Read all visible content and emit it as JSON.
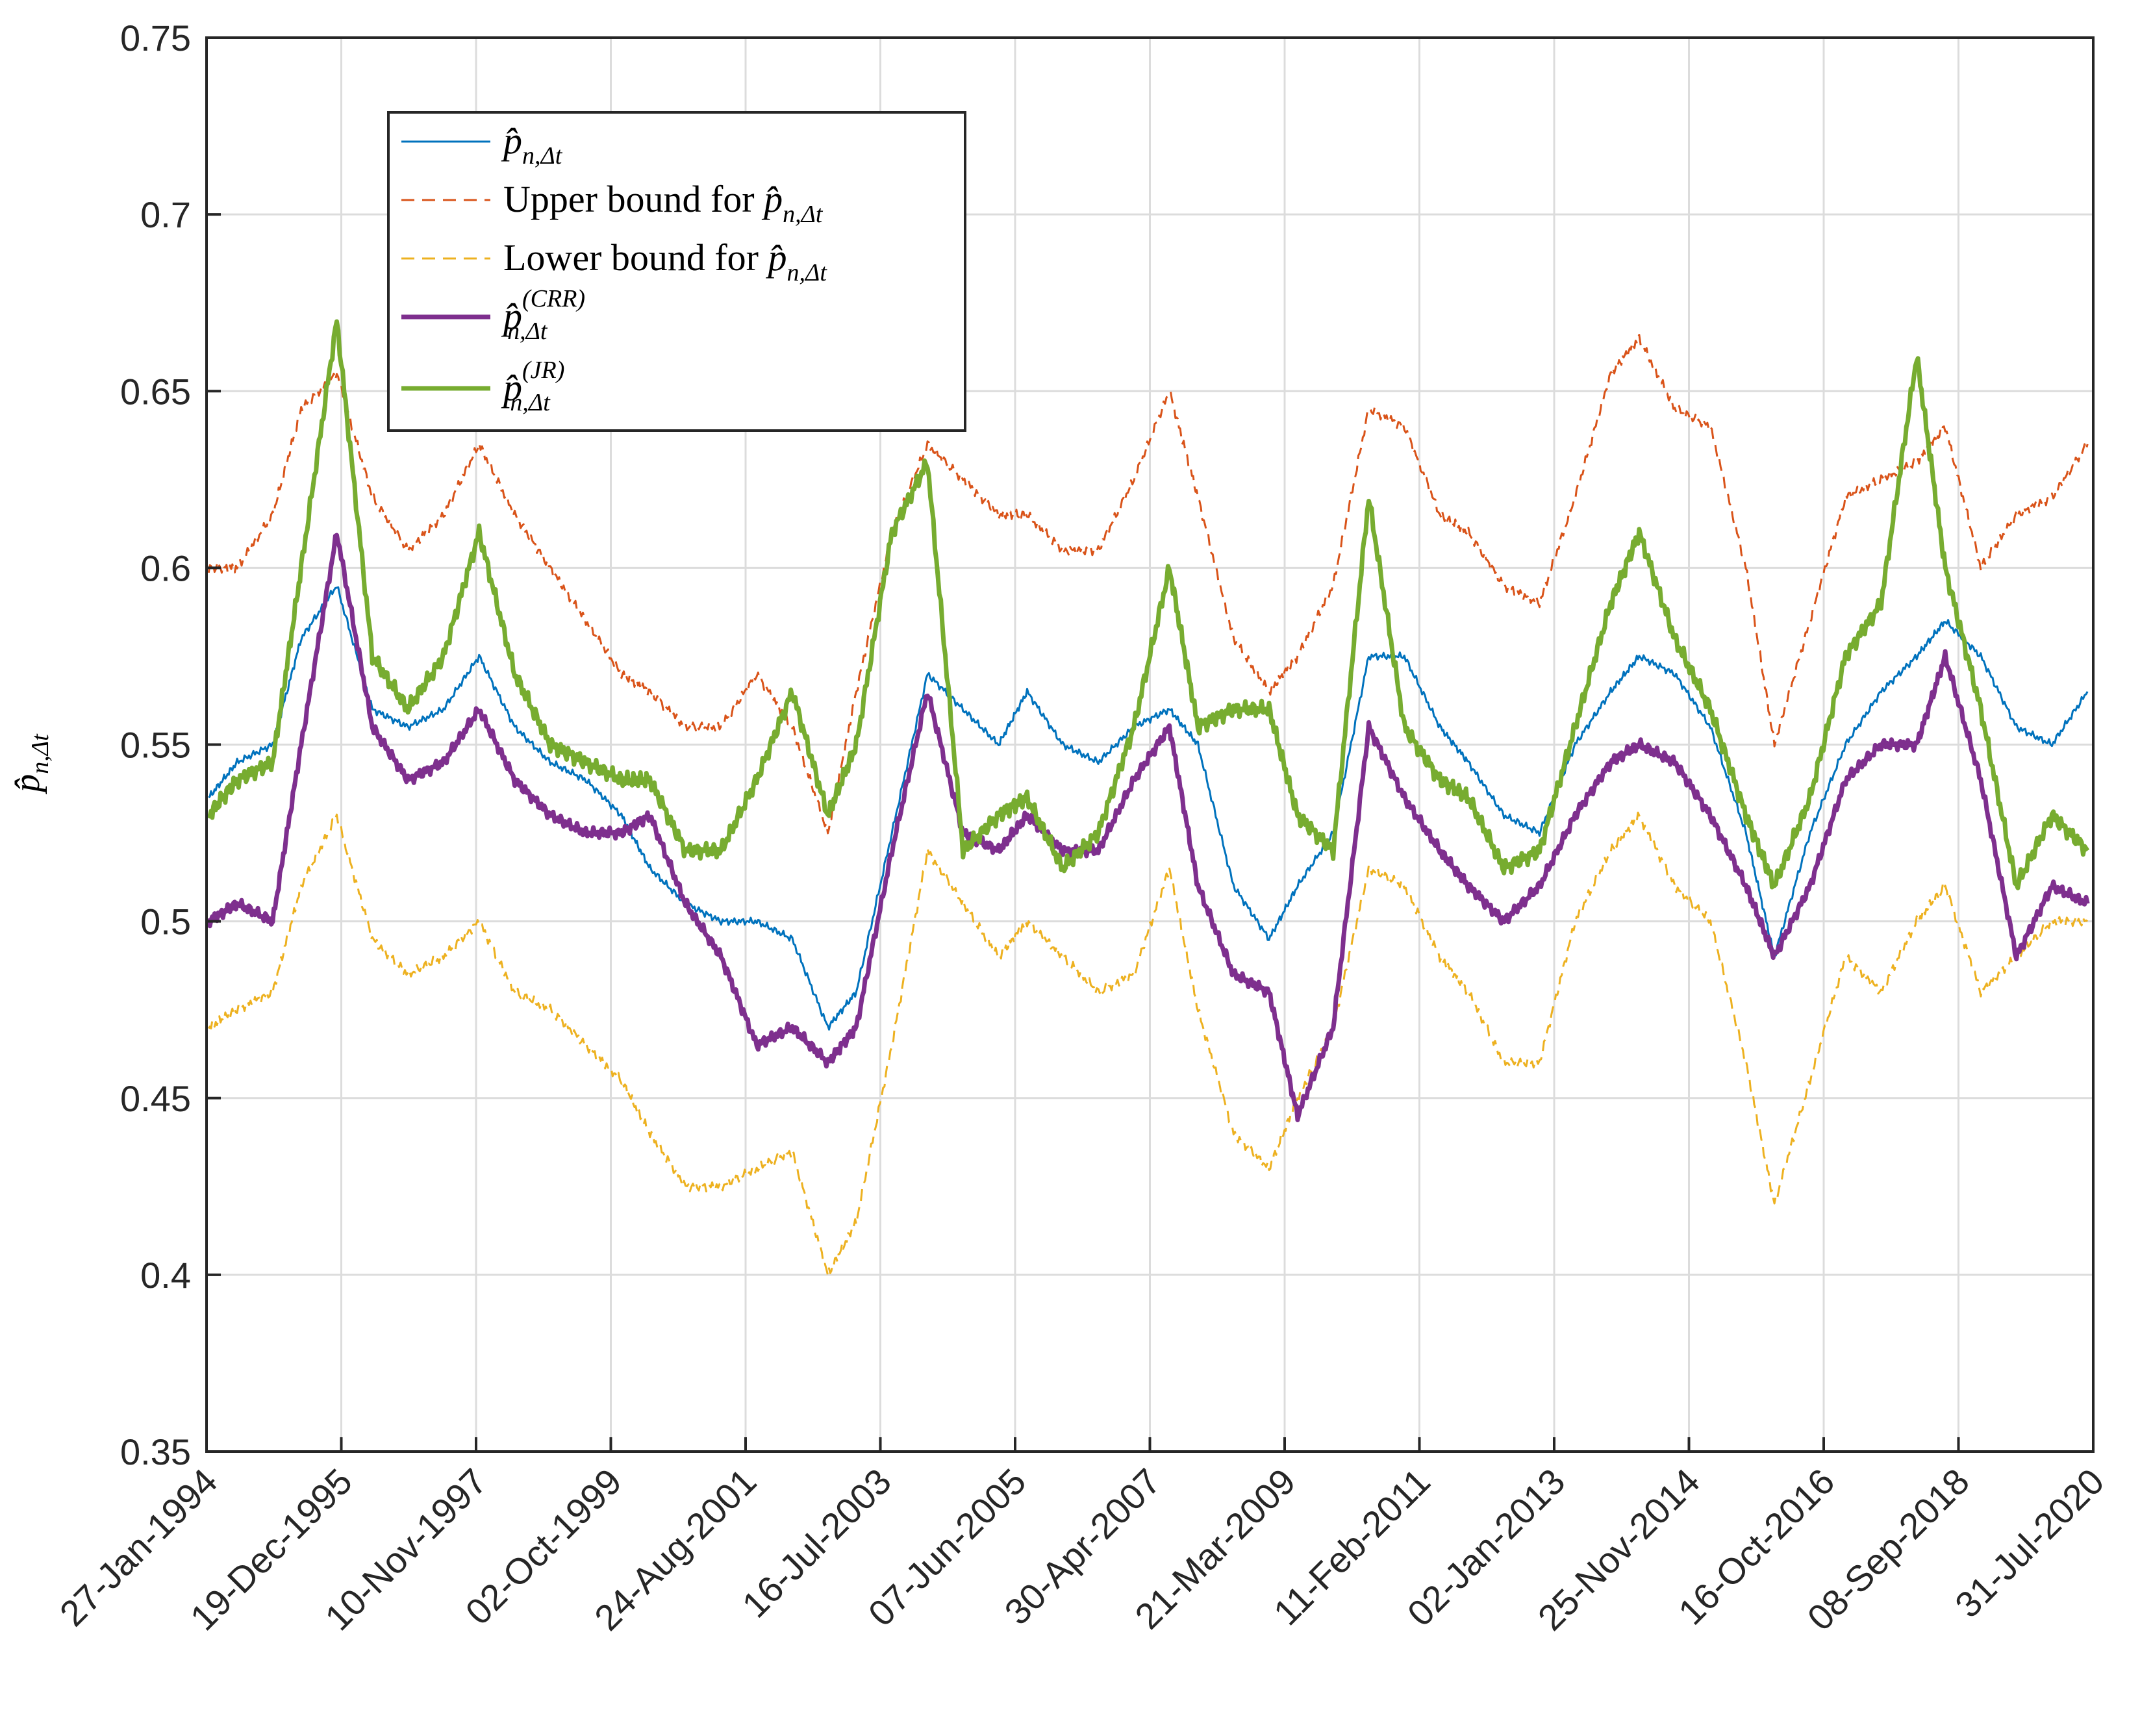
{
  "chart_data": {
    "type": "line",
    "title": "",
    "xlabel": "",
    "ylabel": "p̂",
    "ylabel_subscript": "n,Δt",
    "ylim": [
      0.35,
      0.75
    ],
    "y_ticks": [
      0.35,
      0.4,
      0.45,
      0.5,
      0.55,
      0.6,
      0.65,
      0.7,
      0.75
    ],
    "y_tick_labels": [
      "0.35",
      "0.4",
      "0.45",
      "0.5",
      "0.55",
      "0.6",
      "0.65",
      "0.7",
      "0.75"
    ],
    "x_tick_labels": [
      "27-Jan-1994",
      "19-Dec-1995",
      "10-Nov-1997",
      "02-Oct-1999",
      "24-Aug-2001",
      "16-Jul-2003",
      "07-Jun-2005",
      "30-Apr-2007",
      "21-Mar-2009",
      "11-Feb-2011",
      "02-Jan-2013",
      "25-Nov-2014",
      "16-Oct-2016",
      "08-Sep-2018",
      "31-Jul-2020"
    ],
    "xlim": [
      1994.07,
      2020.58
    ],
    "grid": true,
    "legend_position": "top-left",
    "x": [
      1994.1,
      1994.5,
      1995.0,
      1995.4,
      1995.9,
      1996.4,
      1996.9,
      1997.4,
      1997.9,
      1998.4,
      1998.9,
      1999.4,
      1999.9,
      2000.3,
      2000.8,
      2001.3,
      2001.8,
      2002.3,
      2002.8,
      2003.2,
      2003.7,
      2004.2,
      2004.7,
      2005.2,
      2005.6,
      2006.1,
      2006.6,
      2007.1,
      2007.6,
      2008.0,
      2008.5,
      2009.0,
      2009.4,
      2009.9,
      2010.4,
      2010.9,
      2011.4,
      2011.8,
      2012.3,
      2012.8,
      2013.3,
      2013.8,
      2014.2,
      2014.7,
      2015.2,
      2015.7,
      2016.1,
      2016.6,
      2017.1,
      2017.6,
      2018.1,
      2018.5,
      2019.0,
      2019.5,
      2020.0,
      2020.5
    ],
    "series": [
      {
        "name": "p̂_{n,Δt}",
        "style": "solid",
        "values": [
          0.535,
          0.545,
          0.55,
          0.58,
          0.595,
          0.56,
          0.555,
          0.56,
          0.575,
          0.555,
          0.545,
          0.54,
          0.53,
          0.515,
          0.505,
          0.5,
          0.5,
          0.495,
          0.47,
          0.48,
          0.525,
          0.57,
          0.56,
          0.55,
          0.565,
          0.55,
          0.545,
          0.555,
          0.56,
          0.55,
          0.51,
          0.495,
          0.51,
          0.525,
          0.575,
          0.575,
          0.555,
          0.545,
          0.53,
          0.525,
          0.55,
          0.565,
          0.575,
          0.57,
          0.555,
          0.525,
          0.49,
          0.525,
          0.55,
          0.565,
          0.575,
          0.585,
          0.575,
          0.555,
          0.55,
          0.565
        ]
      },
      {
        "name": "Upper bound for p̂_{n,Δt}",
        "style": "dashed",
        "values": [
          0.6,
          0.6,
          0.615,
          0.645,
          0.655,
          0.62,
          0.605,
          0.615,
          0.635,
          0.615,
          0.6,
          0.585,
          0.57,
          0.565,
          0.555,
          0.555,
          0.57,
          0.555,
          0.525,
          0.565,
          0.61,
          0.635,
          0.625,
          0.615,
          0.615,
          0.605,
          0.605,
          0.625,
          0.65,
          0.62,
          0.58,
          0.565,
          0.575,
          0.595,
          0.645,
          0.64,
          0.615,
          0.61,
          0.595,
          0.59,
          0.62,
          0.655,
          0.665,
          0.645,
          0.64,
          0.6,
          0.55,
          0.585,
          0.62,
          0.625,
          0.63,
          0.64,
          0.6,
          0.615,
          0.62,
          0.635
        ]
      },
      {
        "name": "Lower bound for p̂_{n,Δt}",
        "style": "dashed",
        "values": [
          0.47,
          0.475,
          0.48,
          0.51,
          0.53,
          0.495,
          0.485,
          0.49,
          0.5,
          0.48,
          0.475,
          0.465,
          0.455,
          0.44,
          0.425,
          0.425,
          0.43,
          0.435,
          0.4,
          0.415,
          0.465,
          0.52,
          0.505,
          0.49,
          0.5,
          0.49,
          0.48,
          0.485,
          0.515,
          0.475,
          0.44,
          0.43,
          0.45,
          0.47,
          0.515,
          0.51,
          0.49,
          0.48,
          0.46,
          0.46,
          0.5,
          0.52,
          0.53,
          0.51,
          0.5,
          0.46,
          0.42,
          0.455,
          0.49,
          0.48,
          0.5,
          0.51,
          0.48,
          0.49,
          0.5,
          0.5
        ]
      },
      {
        "name": "p̂^{(CRR)}_{n,Δt}",
        "style": "solid-thick",
        "values": [
          0.5,
          0.505,
          0.5,
          0.55,
          0.61,
          0.555,
          0.54,
          0.545,
          0.56,
          0.54,
          0.53,
          0.525,
          0.525,
          0.53,
          0.505,
          0.49,
          0.465,
          0.47,
          0.46,
          0.47,
          0.52,
          0.565,
          0.525,
          0.52,
          0.53,
          0.52,
          0.52,
          0.54,
          0.555,
          0.51,
          0.485,
          0.48,
          0.445,
          0.47,
          0.555,
          0.535,
          0.52,
          0.51,
          0.5,
          0.51,
          0.53,
          0.545,
          0.55,
          0.545,
          0.53,
          0.51,
          0.49,
          0.51,
          0.54,
          0.55,
          0.55,
          0.575,
          0.54,
          0.49,
          0.51,
          0.505
        ]
      },
      {
        "name": "p̂^{(JR)}_{n,Δt}",
        "style": "solid-thick",
        "values": [
          0.53,
          0.54,
          0.545,
          0.6,
          0.67,
          0.575,
          0.56,
          0.575,
          0.61,
          0.57,
          0.55,
          0.545,
          0.54,
          0.54,
          0.52,
          0.52,
          0.54,
          0.565,
          0.53,
          0.55,
          0.61,
          0.63,
          0.52,
          0.53,
          0.535,
          0.515,
          0.525,
          0.555,
          0.6,
          0.555,
          0.56,
          0.56,
          0.53,
          0.52,
          0.62,
          0.555,
          0.54,
          0.535,
          0.515,
          0.52,
          0.555,
          0.59,
          0.61,
          0.58,
          0.56,
          0.53,
          0.51,
          0.535,
          0.575,
          0.59,
          0.66,
          0.6,
          0.56,
          0.51,
          0.53,
          0.52
        ]
      }
    ]
  },
  "legend": {
    "items": [
      {
        "prefix": "",
        "sup": ""
      },
      {
        "prefix": "Upper bound for ",
        "sup": ""
      },
      {
        "prefix": "Lower bound for ",
        "sup": ""
      },
      {
        "prefix": "",
        "sup": "(CRR)"
      },
      {
        "prefix": "",
        "sup": "(JR)"
      }
    ],
    "symbol": "p̂",
    "subscript": "n,Δt"
  },
  "colors": {
    "p_hat": "#0072BD",
    "upper": "#D95319",
    "lower": "#EDB120",
    "crr": "#7E2F8E",
    "jr": "#77AC30",
    "grid": "#DCDCDC",
    "axis": "#262626"
  }
}
